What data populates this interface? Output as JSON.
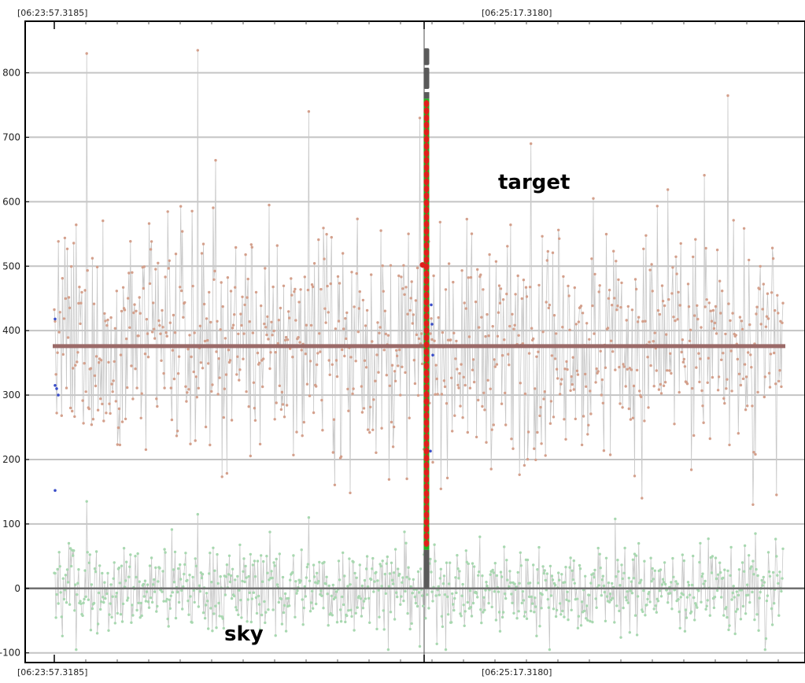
{
  "chart_data": {
    "type": "scatter",
    "title": "",
    "xlabel": "",
    "ylabel": "",
    "x_tick_labels": [
      "[06:23:57.3185]",
      "[06:25:17.3180]"
    ],
    "y_ticks": [
      -100,
      0,
      100,
      200,
      300,
      400,
      500,
      600,
      700,
      800
    ],
    "ylim": [
      -115,
      880
    ],
    "grid": true,
    "annotations": {
      "target": "target",
      "sky": "sky"
    },
    "reference_lines": {
      "target_mean": 376,
      "zero": 0
    },
    "series": [
      {
        "role": "target",
        "color": "#d4a08c",
        "line_color": "#c8c8c8",
        "approx_mean": 376,
        "typical_range": [
          200,
          550
        ],
        "extremes": [
          830,
          835,
          740,
          730,
          690,
          140,
          130
        ]
      },
      {
        "role": "sky",
        "color": "#a8d8b0",
        "line_color": "#c8c8c8",
        "approx_mean": 0,
        "typical_range": [
          -50,
          80
        ],
        "extremes": [
          135,
          115,
          110,
          -90
        ]
      },
      {
        "role": "marker",
        "colors": [
          "#e0201c",
          "#22b422",
          "#5a5a5a"
        ],
        "y_range": [
          0,
          830
        ]
      }
    ],
    "colors": {
      "mean_line": "#9b6a68",
      "zero_line": "#707070",
      "blue_points": "#3a4ec8"
    }
  }
}
